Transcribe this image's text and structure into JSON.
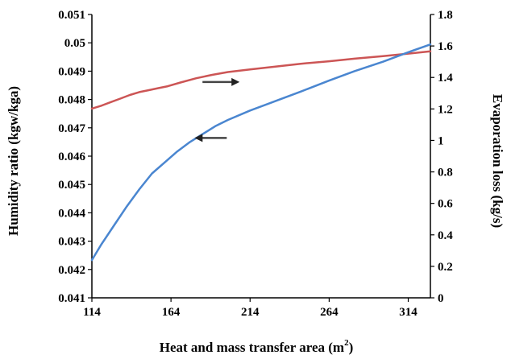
{
  "chart_data": {
    "type": "line",
    "title": "",
    "xlabel": "Heat and mass transfer area (m",
    "xlabel_sup": "2",
    "xlabel_close": ")",
    "ylabel_left": "Humidity ratio (kgw/kga)",
    "ylabel_right": "Evaporation loss (kg/s)",
    "xlim": [
      114,
      328
    ],
    "ylim_left": [
      0.041,
      0.051
    ],
    "ylim_right": [
      0,
      1.8
    ],
    "x_ticks": [
      "114",
      "164",
      "214",
      "264",
      "314"
    ],
    "y_left_ticks": [
      "0.041",
      "0.042",
      "0.043",
      "0.044",
      "0.045",
      "0.046",
      "0.047",
      "0.048",
      "0.049",
      "0.05",
      "0.051"
    ],
    "y_right_ticks": [
      "0",
      "0.2",
      "0.4",
      "0.6",
      "0.8",
      "1",
      "1.2",
      "1.4",
      "1.6",
      "1.8"
    ],
    "grid": false,
    "legend": "none",
    "series": [
      {
        "axis": "left",
        "color": "#cc5555",
        "x": [
          114,
          120,
          126,
          132,
          138,
          144,
          150,
          156,
          162,
          170,
          180,
          190,
          200,
          214,
          230,
          246,
          264,
          280,
          298,
          314,
          328
        ],
        "y": [
          0.04768,
          0.04778,
          0.04791,
          0.04803,
          0.04816,
          0.04826,
          0.04833,
          0.0484,
          0.04847,
          0.0486,
          0.04875,
          0.04887,
          0.04897,
          0.04906,
          0.04916,
          0.04926,
          0.04935,
          0.04944,
          0.04953,
          0.04962,
          0.0497
        ]
      },
      {
        "axis": "right",
        "color": "#4a86d0",
        "x": [
          114,
          120,
          128,
          136,
          144,
          152,
          160,
          168,
          176,
          184,
          192,
          200,
          214,
          230,
          246,
          264,
          280,
          298,
          314,
          328
        ],
        "y": [
          0.24,
          0.34,
          0.46,
          0.58,
          0.69,
          0.79,
          0.86,
          0.93,
          0.99,
          1.04,
          1.09,
          1.13,
          1.19,
          1.25,
          1.31,
          1.38,
          1.44,
          1.5,
          1.56,
          1.61
        ]
      }
    ],
    "annotations": [
      {
        "type": "arrow",
        "points_to": "right",
        "series": 0,
        "x": 188
      },
      {
        "type": "arrow",
        "points_to": "left",
        "series": 1,
        "x": 185
      }
    ]
  }
}
